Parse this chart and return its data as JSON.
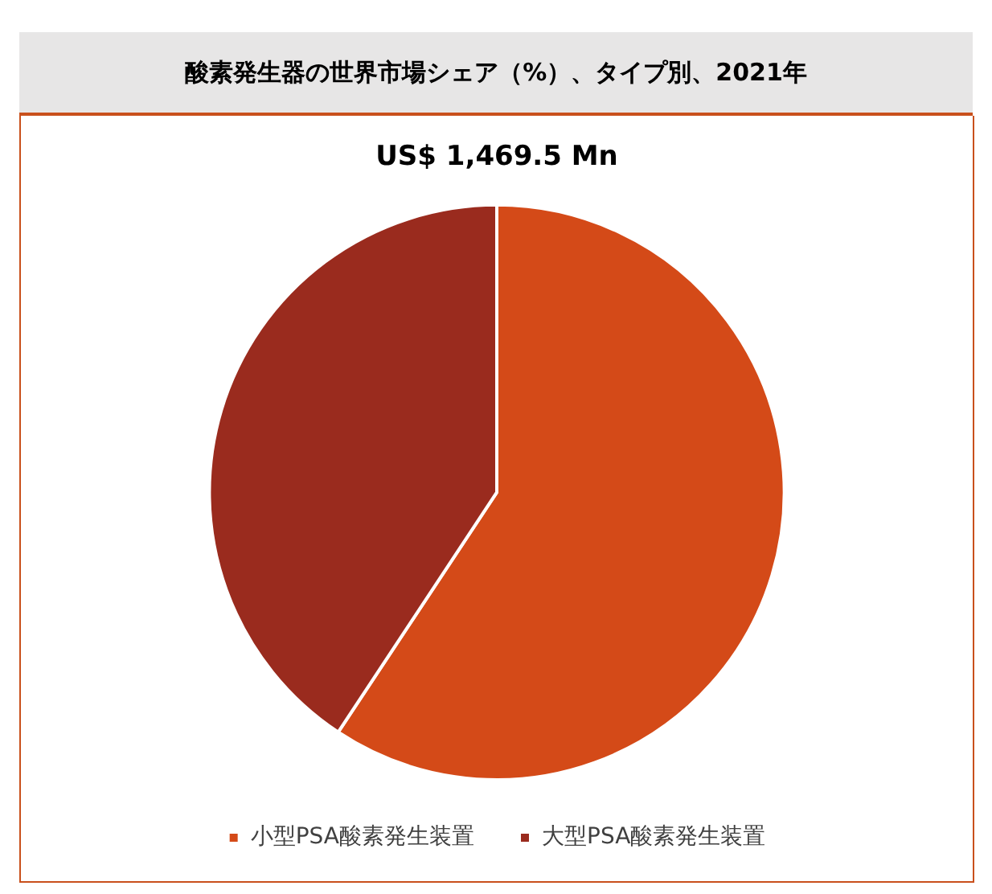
{
  "chart_data": {
    "type": "pie",
    "title": "酸素発生器の世界市場シェア（%）、タイプ別、2021年",
    "subtitle": "US$ 1,469.5 Mn",
    "categories": [
      "小型PSA酸素発生装置",
      "大型PSA酸素発生装置"
    ],
    "values": [
      59.3,
      40.7
    ],
    "colors": [
      "#d44a18",
      "#9a2b1e"
    ],
    "legend": "bottom"
  }
}
